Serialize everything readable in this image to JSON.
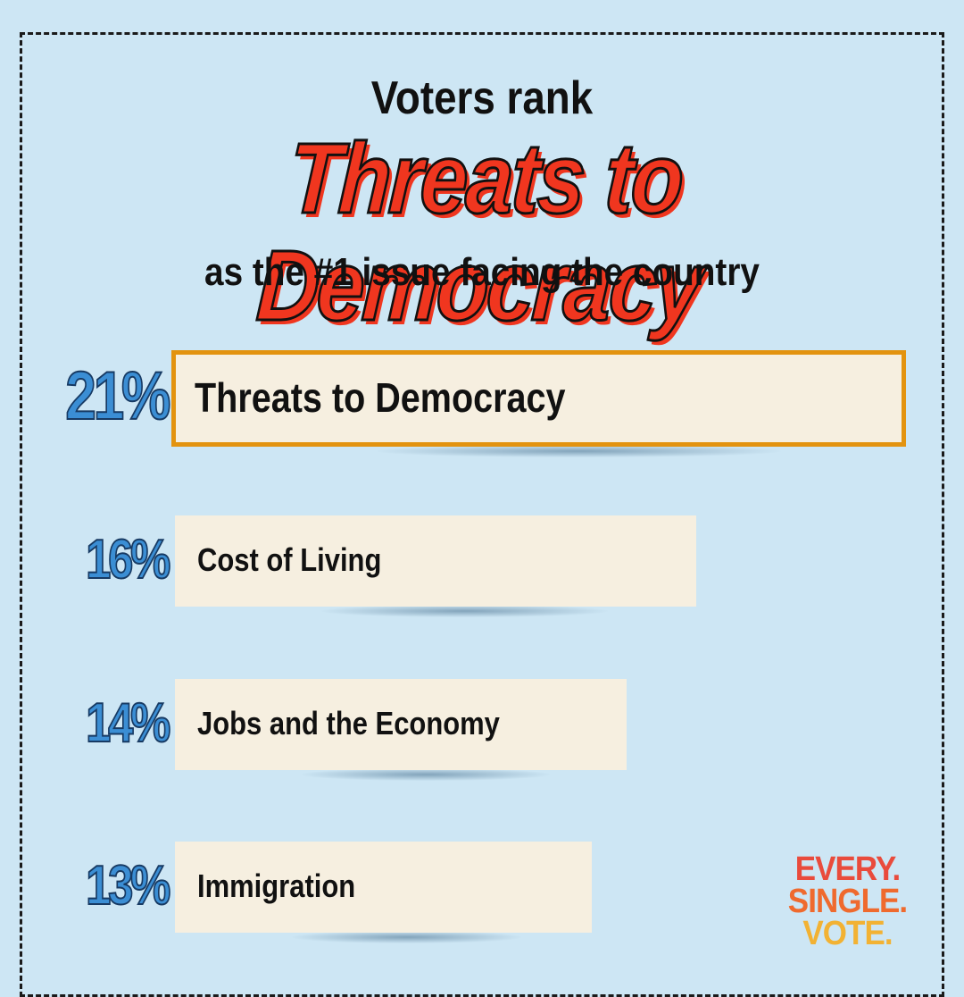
{
  "header": {
    "kicker": "Voters rank",
    "title": "Threats to Democracy",
    "subtitle": "as the #1 issue facing the country"
  },
  "chart_data": {
    "type": "bar",
    "orientation": "horizontal",
    "title": "Threats to Democracy",
    "categories": [
      "Threats to Democracy",
      "Cost of Living",
      "Jobs and the Economy",
      "Immigration"
    ],
    "values": [
      21,
      16,
      14,
      13
    ],
    "value_labels": [
      "21%",
      "16%",
      "14%",
      "13%"
    ],
    "unit": "%",
    "highlighted_category": "Threats to Democracy",
    "grid": false,
    "legend": "none"
  },
  "logo": {
    "line1": "EVERY.",
    "line2": "SINGLE.",
    "line3": "VOTE."
  },
  "colors": {
    "background": "#cde6f4",
    "bar_fill": "#f6efe0",
    "highlight_border": "#e3930f",
    "title_red": "#f0361f",
    "percent_blue": "#3b8ed4"
  }
}
